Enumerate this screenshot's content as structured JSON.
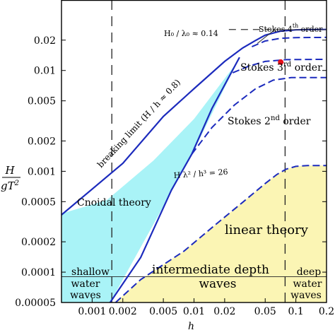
{
  "chart_data": {
    "type": "area",
    "axes": {
      "x": {
        "label": "h",
        "scale": "log",
        "range": [
          0.0005,
          0.2
        ],
        "ticks": [
          {
            "value": 0.001,
            "label": "0.001"
          },
          {
            "value": 0.002,
            "label": "0.002"
          },
          {
            "value": 0.005,
            "label": "0.005"
          },
          {
            "value": 0.01,
            "label": "0.01"
          },
          {
            "value": 0.02,
            "label": "0.02"
          },
          {
            "value": 0.05,
            "label": "0.05"
          },
          {
            "value": 0.1,
            "label": "0.1"
          },
          {
            "value": 0.2,
            "label": "0.2"
          }
        ]
      },
      "y": {
        "label_num": "H",
        "label_den": "gT",
        "label_den_exp": "2",
        "scale": "log",
        "range": [
          5e-05,
          0.05
        ],
        "ticks": [
          {
            "value": 5e-05,
            "label": "0.00005"
          },
          {
            "value": 0.0001,
            "label": "0.0001"
          },
          {
            "value": 0.0002,
            "label": "0.0002"
          },
          {
            "value": 0.0005,
            "label": "0.0005"
          },
          {
            "value": 0.001,
            "label": "0.001"
          },
          {
            "value": 0.002,
            "label": "0.002"
          },
          {
            "value": 0.005,
            "label": "0.005"
          },
          {
            "value": 0.01,
            "label": "0.01"
          },
          {
            "value": 0.02,
            "label": "0.02"
          }
        ]
      }
    },
    "colors": {
      "cnoidal": "#a9f3f7",
      "linear": "#fbf5b4",
      "curve": "#1c2bbd",
      "point": "#e8101a"
    },
    "regions": {
      "cnoidal": [
        [
          0.0005,
          5e-05
        ],
        [
          0.0005,
          0.00038
        ],
        [
          0.0014,
          0.00052
        ],
        [
          0.004,
          0.00128
        ],
        [
          0.01,
          0.0033
        ],
        [
          0.025,
          0.0112
        ],
        [
          0.028,
          0.0135
        ],
        [
          0.0095,
          0.00145
        ],
        [
          0.0015,
          5e-05
        ]
      ],
      "linear": [
        [
          0.0017,
          5e-05
        ],
        [
          0.003,
          8.45e-05
        ],
        [
          0.008,
          0.000162
        ],
        [
          0.016,
          0.000292
        ],
        [
          0.03,
          0.000492
        ],
        [
          0.05,
          0.000756
        ],
        [
          0.065,
          0.00093
        ],
        [
          0.08,
          0.00105
        ],
        [
          0.1,
          0.00112
        ],
        [
          0.13,
          0.00114
        ],
        [
          0.2,
          0.00114
        ],
        [
          0.2,
          5e-05
        ]
      ]
    },
    "curves": {
      "breaking_limit": [
        [
          0.0005,
          0.00037
        ],
        [
          0.002,
          0.0012
        ],
        [
          0.005,
          0.0035
        ],
        [
          0.01,
          0.0066
        ],
        [
          0.02,
          0.0123
        ],
        [
          0.03,
          0.0167
        ],
        [
          0.04,
          0.0198
        ],
        [
          0.05,
          0.0224
        ],
        [
          0.07,
          0.0245
        ],
        [
          0.1,
          0.0253
        ],
        [
          0.2,
          0.0255
        ]
      ],
      "h0_over_lambda0": [
        [
          0.042,
          0.0186
        ],
        [
          0.062,
          0.0254
        ],
        [
          0.2,
          0.0254
        ]
      ],
      "ursell_26": [
        [
          0.0015,
          5e-05
        ],
        [
          0.003,
          0.00014
        ],
        [
          0.006,
          0.00065
        ],
        [
          0.0095,
          0.00148
        ],
        [
          0.015,
          0.0042
        ],
        [
          0.028,
          0.0135
        ]
      ],
      "stokes_4": [
        [
          0.037,
          0.0172
        ],
        [
          0.05,
          0.0196
        ],
        [
          0.07,
          0.0208
        ],
        [
          0.1,
          0.0212
        ],
        [
          0.2,
          0.0213
        ]
      ],
      "stokes_3": [
        [
          0.024,
          0.0095
        ],
        [
          0.035,
          0.0111
        ],
        [
          0.05,
          0.0123
        ],
        [
          0.08,
          0.0128
        ],
        [
          0.2,
          0.0129
        ]
      ],
      "stokes_2": [
        [
          0.0095,
          0.00148
        ],
        [
          0.015,
          0.00272
        ],
        [
          0.025,
          0.00455
        ],
        [
          0.04,
          0.00656
        ],
        [
          0.06,
          0.00802
        ],
        [
          0.09,
          0.0085
        ],
        [
          0.2,
          0.0085
        ]
      ],
      "linear_boundary": [
        [
          0.0017,
          5e-05
        ],
        [
          0.003,
          8.45e-05
        ],
        [
          0.008,
          0.000162
        ],
        [
          0.016,
          0.000292
        ],
        [
          0.03,
          0.000492
        ],
        [
          0.05,
          0.000756
        ],
        [
          0.065,
          0.00093
        ],
        [
          0.08,
          0.00105
        ],
        [
          0.1,
          0.00112
        ],
        [
          0.13,
          0.00114
        ],
        [
          0.2,
          0.00114
        ]
      ]
    },
    "vertical_lines": [
      {
        "x": 0.00156
      },
      {
        "x": 0.0784
      }
    ],
    "horizontal_line": {
      "y": 9e-05
    },
    "h0_dash": {
      "x": [
        0.022,
        0.056
      ],
      "y": 0.0255
    },
    "point": {
      "x": 0.071,
      "y": 0.0121
    },
    "annotations": {
      "breaking_limit": "breaking limit (H / h ≈ 0.8)",
      "h0_lambda": "H₀ / λ₀ ≈ 0.14",
      "ursell": "H λ² / h³ = 26",
      "stokes4_a": "Stokes 4",
      "stokes4_sup": "th",
      "stokes4_b": " order",
      "stokes3_a": "Stokes 3",
      "stokes3_sup": "rd",
      "stokes3_b": " order",
      "stokes2_a": "Stokes 2",
      "stokes2_sup": "nd",
      "stokes2_b": " order",
      "cnoidal": "Cnoidal theory",
      "linear": "linear theory",
      "shallow_1": "shallow",
      "shallow_2": "water",
      "shallow_3": "waves",
      "intermediate_1": "intermediate depth",
      "intermediate_2": "waves",
      "deep_1": "deep",
      "deep_2": "water",
      "deep_3": "waves"
    }
  }
}
